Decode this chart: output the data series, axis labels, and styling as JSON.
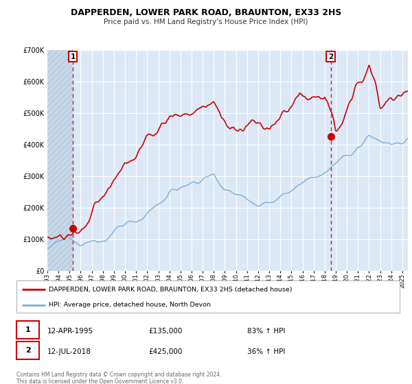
{
  "title": "DAPPERDEN, LOWER PARK ROAD, BRAUNTON, EX33 2HS",
  "subtitle": "Price paid vs. HM Land Registry's House Price Index (HPI)",
  "legend_line1": "DAPPERDEN, LOWER PARK ROAD, BRAUNTON, EX33 2HS (detached house)",
  "legend_line2": "HPI: Average price, detached house, North Devon",
  "transaction1_date": "12-APR-1995",
  "transaction1_price": 135000,
  "transaction1_label": "83% ↑ HPI",
  "transaction2_date": "12-JUL-2018",
  "transaction2_price": 425000,
  "transaction2_label": "36% ↑ HPI",
  "footer": "Contains HM Land Registry data © Crown copyright and database right 2024.\nThis data is licensed under the Open Government Licence v3.0.",
  "red_color": "#cc0000",
  "blue_color": "#7aafda",
  "plot_bg_color": "#dce8f5",
  "grid_color": "#ffffff",
  "hatch_color": "#c8d8e8",
  "ylim": [
    0,
    700000
  ],
  "xlim_start": 1993.0,
  "xlim_end": 2025.5,
  "t1_year": 1995.29,
  "t2_year": 2018.54
}
